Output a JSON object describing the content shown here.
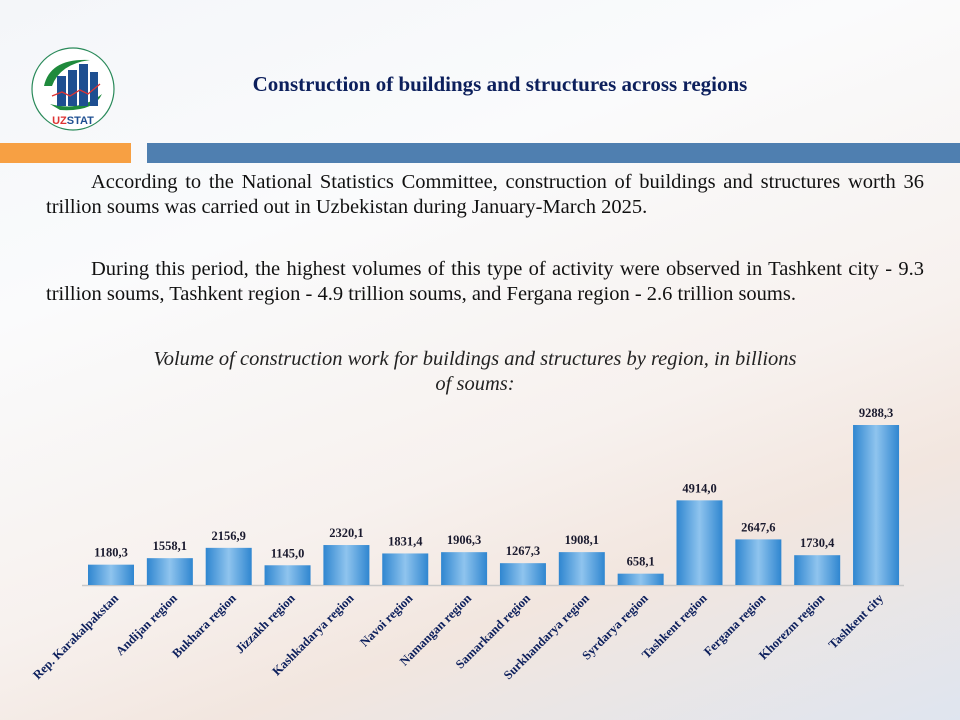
{
  "header": {
    "title": "Construction of buildings and structures across regions",
    "logo_text": "UZSTAT"
  },
  "paragraphs": [
    "According to the National Statistics Committee, construction of buildings and structures worth 36 trillion soums was carried out in Uzbekistan during January-March 2025.",
    "During this period, the highest volumes of this type of activity were observed in Tashkent city - 9.3 trillion soums, Tashkent region - 4.9 trillion soums, and Fergana region - 2.6 trillion soums."
  ],
  "chart_data": {
    "type": "bar",
    "title": "Volume of construction work for buildings and structures by region, in billions of soums:",
    "xlabel": "",
    "ylabel": "",
    "categories": [
      "Rep. Karakalpakstan",
      "Andijan region",
      "Bukhara region",
      "Jizzakh region",
      "Kashkadarya region",
      "Navoi region",
      "Namangan region",
      "Samarkand region",
      "Surkhandarya region",
      "Syrdarya region",
      "Tashkent region",
      "Fergana region",
      "Khorezm region",
      "Tashkent city"
    ],
    "values": [
      1180.3,
      1558.1,
      2156.9,
      1145.0,
      2320.1,
      1831.4,
      1906.3,
      1267.3,
      1908.1,
      658.1,
      4914.0,
      2647.6,
      1730.4,
      9288.3
    ],
    "data_labels": [
      "1180,3",
      "1558,1",
      "2156,9",
      "1145,0",
      "2320,1",
      "1831,4",
      "1906,3",
      "1267,3",
      "1908,1",
      "658,1",
      "4914,0",
      "2647,6",
      "1730,4",
      "9288,3"
    ],
    "ylim": [
      0,
      9288.3
    ],
    "grid": false,
    "bar_color": "#3a8fd6"
  }
}
